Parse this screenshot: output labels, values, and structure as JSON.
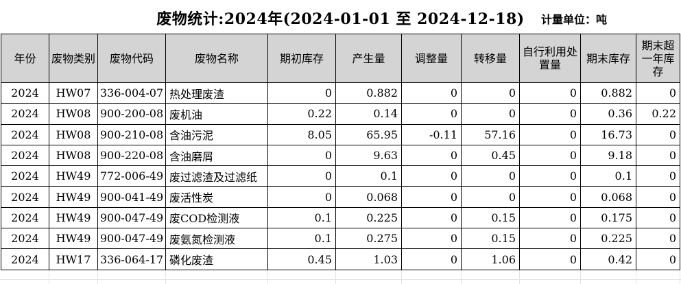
{
  "header": {
    "title": "废物统计:2024年(2024-01-01 至 2024-12-18)",
    "unit_label": "计量单位：吨"
  },
  "table": {
    "columns": [
      "年份",
      "废物类别",
      "废物代码",
      "废物名称",
      "期初库存",
      "产生量",
      "调整量",
      "转移量",
      "自行利用处置量",
      "期末库存",
      "期末超一年库存"
    ],
    "rows": [
      [
        "2024",
        "HW07",
        "336-004-07",
        "热处理废渣",
        "0",
        "0.882",
        "0",
        "0",
        "0",
        "0.882",
        "0"
      ],
      [
        "2024",
        "HW08",
        "900-200-08",
        "废机油",
        "0.22",
        "0.14",
        "0",
        "0",
        "0",
        "0.36",
        "0.22"
      ],
      [
        "2024",
        "HW08",
        "900-210-08",
        "含油污泥",
        "8.05",
        "65.95",
        "-0.11",
        "57.16",
        "0",
        "16.73",
        "0"
      ],
      [
        "2024",
        "HW08",
        "900-220-08",
        "含油磨屑",
        "0",
        "9.63",
        "0",
        "0.45",
        "0",
        "9.18",
        "0"
      ],
      [
        "2024",
        "HW49",
        "772-006-49",
        "废过滤渣及过滤纸",
        "0",
        "0.1",
        "0",
        "0",
        "0",
        "0.1",
        "0"
      ],
      [
        "2024",
        "HW49",
        "900-041-49",
        "废活性炭",
        "0",
        "0.068",
        "0",
        "0",
        "0",
        "0.068",
        "0"
      ],
      [
        "2024",
        "HW49",
        "900-047-49",
        "废COD检测液",
        "0.1",
        "0.225",
        "0",
        "0.15",
        "0",
        "0.175",
        "0"
      ],
      [
        "2024",
        "HW49",
        "900-047-49",
        "废氨氮检测液",
        "0.1",
        "0.275",
        "0",
        "0.15",
        "0",
        "0.225",
        "0"
      ],
      [
        "2024",
        "HW17",
        "336-064-17",
        "磷化废渣",
        "0.45",
        "1.03",
        "0",
        "1.06",
        "0",
        "0.42",
        "0"
      ]
    ]
  },
  "colors": {
    "header_bg": "#d4d4d4",
    "border": "#000000",
    "grid_faint": "#e3e3e3",
    "text": "#000000"
  }
}
